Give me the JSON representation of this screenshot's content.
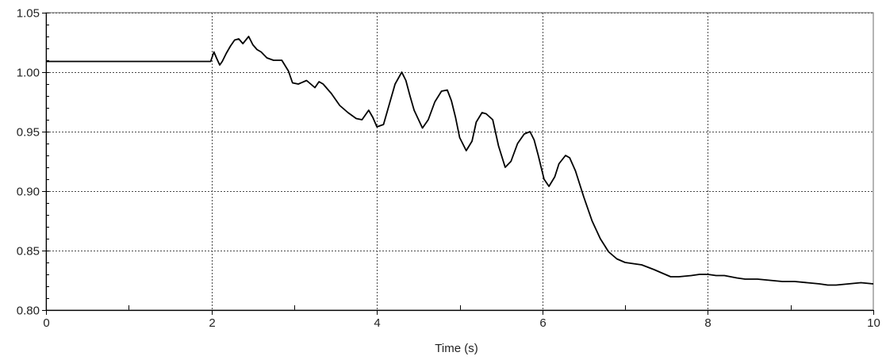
{
  "chart_data": {
    "type": "line",
    "title": "",
    "xlabel": "Time (s)",
    "ylabel": "",
    "xlim": [
      0,
      10
    ],
    "ylim": [
      0.8,
      1.05
    ],
    "x_ticks": [
      0,
      2,
      4,
      6,
      8,
      10
    ],
    "x_tick_labels": [
      "0",
      "2",
      "4",
      "6",
      "8",
      "10"
    ],
    "y_ticks": [
      0.8,
      0.85,
      0.9,
      0.95,
      1.0,
      1.05
    ],
    "y_tick_labels": [
      "0.80",
      "0.85",
      "0.90",
      "0.95",
      "1.00",
      "1.05"
    ],
    "grid": true,
    "grid_style": "dotted",
    "colors": {
      "line": "#000000",
      "grid": "#4a4a4a",
      "axis": "#000000"
    },
    "series": [
      {
        "x": [
          0,
          1.99,
          2.0,
          2.03,
          2.06,
          2.1,
          2.13,
          2.18,
          2.23,
          2.28,
          2.33,
          2.38,
          2.45,
          2.5,
          2.55,
          2.6,
          2.67,
          2.75,
          2.85,
          2.93,
          2.98,
          3.05,
          3.15,
          3.25,
          3.3,
          3.35,
          3.45,
          3.55,
          3.65,
          3.75,
          3.82,
          3.9,
          3.95,
          4.0,
          4.08,
          4.15,
          4.22,
          4.3,
          4.35,
          4.4,
          4.45,
          4.55,
          4.62,
          4.7,
          4.78,
          4.85,
          4.9,
          4.95,
          5.0,
          5.08,
          5.15,
          5.2,
          5.27,
          5.32,
          5.4,
          5.47,
          5.55,
          5.62,
          5.7,
          5.78,
          5.85,
          5.9,
          5.95,
          6.02,
          6.08,
          6.15,
          6.2,
          6.28,
          6.33,
          6.4,
          6.5,
          6.6,
          6.7,
          6.8,
          6.9,
          7.0,
          7.1,
          7.2,
          7.35,
          7.45,
          7.55,
          7.65,
          7.8,
          7.9,
          8.0,
          8.1,
          8.2,
          8.35,
          8.45,
          8.6,
          8.75,
          8.9,
          9.05,
          9.2,
          9.35,
          9.45,
          9.55,
          9.7,
          9.85,
          10.0
        ],
        "y": [
          1.009,
          1.009,
          1.011,
          1.017,
          1.012,
          1.006,
          1.009,
          1.016,
          1.022,
          1.027,
          1.028,
          1.024,
          1.03,
          1.023,
          1.019,
          1.017,
          1.012,
          1.01,
          1.01,
          1.001,
          0.991,
          0.99,
          0.993,
          0.987,
          0.992,
          0.99,
          0.982,
          0.972,
          0.966,
          0.961,
          0.96,
          0.968,
          0.962,
          0.954,
          0.956,
          0.973,
          0.99,
          1.0,
          0.993,
          0.98,
          0.968,
          0.953,
          0.96,
          0.975,
          0.984,
          0.985,
          0.976,
          0.962,
          0.945,
          0.934,
          0.942,
          0.958,
          0.966,
          0.965,
          0.96,
          0.938,
          0.92,
          0.925,
          0.94,
          0.948,
          0.95,
          0.943,
          0.93,
          0.91,
          0.904,
          0.912,
          0.923,
          0.93,
          0.928,
          0.917,
          0.895,
          0.875,
          0.86,
          0.849,
          0.843,
          0.84,
          0.839,
          0.838,
          0.834,
          0.831,
          0.828,
          0.828,
          0.829,
          0.83,
          0.83,
          0.829,
          0.829,
          0.827,
          0.826,
          0.826,
          0.825,
          0.824,
          0.824,
          0.823,
          0.822,
          0.821,
          0.821,
          0.822,
          0.823,
          0.822
        ]
      }
    ]
  }
}
